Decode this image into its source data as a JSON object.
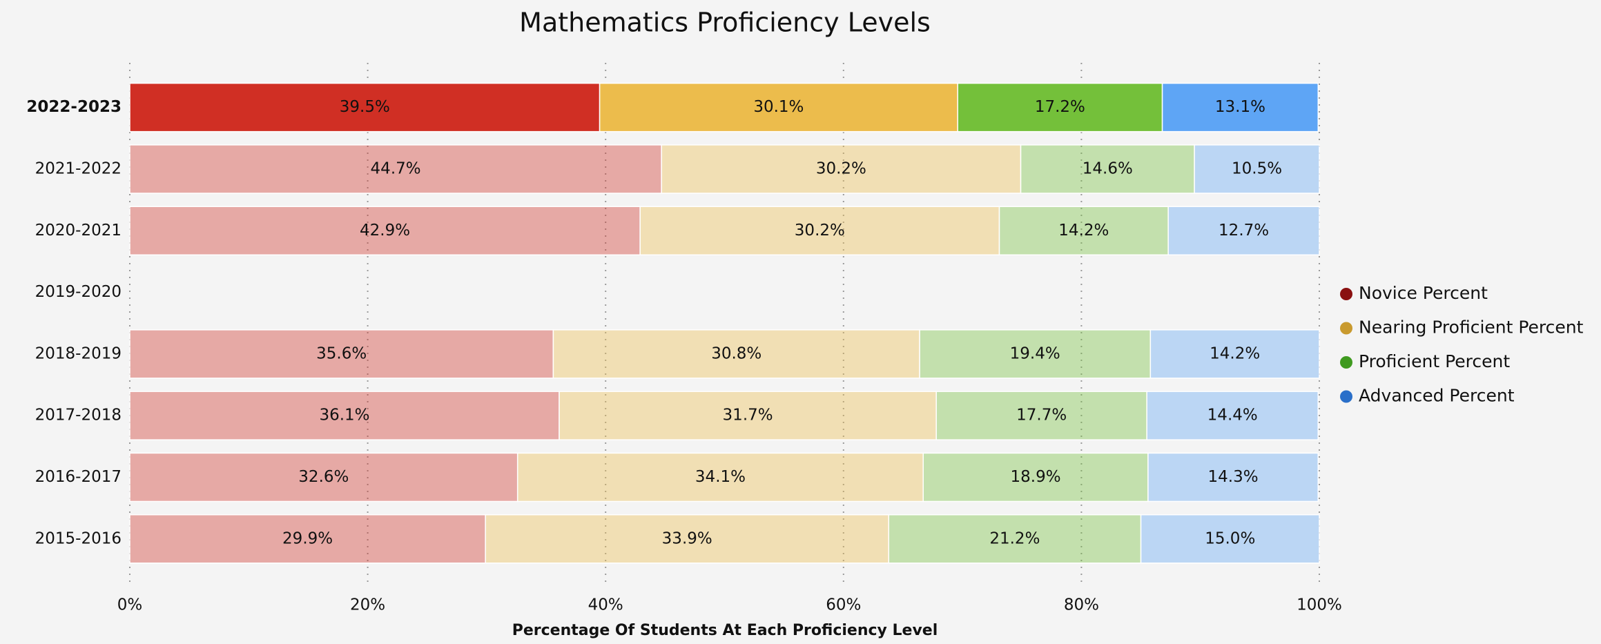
{
  "chart_data": {
    "type": "stacked_barh",
    "title": "Mathematics Proficiency Levels",
    "xlabel": "Percentage Of Students At Each Proficiency Level",
    "categories": [
      "2022-2023",
      "2021-2022",
      "2020-2021",
      "2019-2020",
      "2018-2019",
      "2017-2018",
      "2016-2017",
      "2015-2016"
    ],
    "highlight": "2022-2023",
    "series": [
      {
        "name": "Novice Percent",
        "color": "#d02f24",
        "legend_color": "#8a1010",
        "values": [
          39.5,
          44.7,
          42.9,
          null,
          35.6,
          36.1,
          32.6,
          29.9
        ],
        "value_labels": [
          "39.5%",
          "44.7%",
          "42.9%",
          null,
          "35.6%",
          "36.1%",
          "32.6%",
          "29.9%"
        ]
      },
      {
        "name": "Nearing Proficient Percent",
        "color": "#ecbc4c",
        "legend_color": "#c99a2e",
        "values": [
          30.1,
          30.2,
          30.2,
          null,
          30.8,
          31.7,
          34.1,
          33.9
        ],
        "value_labels": [
          "30.1%",
          "30.2%",
          "30.2%",
          null,
          "30.8%",
          "31.7%",
          "34.1%",
          "33.9%"
        ]
      },
      {
        "name": "Proficient Percent",
        "color": "#74c03a",
        "legend_color": "#3f9a1f",
        "values": [
          17.2,
          14.6,
          14.2,
          null,
          19.4,
          17.7,
          18.9,
          21.2
        ],
        "value_labels": [
          "17.2%",
          "14.6%",
          "14.2%",
          null,
          "19.4%",
          "17.7%",
          "18.9%",
          "21.2%"
        ]
      },
      {
        "name": "Advanced Percent",
        "color": "#5ea5f5",
        "legend_color": "#2a6fc9",
        "values": [
          13.1,
          10.5,
          12.7,
          null,
          14.2,
          14.4,
          14.3,
          15.0
        ],
        "value_labels": [
          "13.1%",
          "10.5%",
          "12.7%",
          null,
          "14.2%",
          "14.4%",
          "14.3%",
          "15.0%"
        ]
      }
    ],
    "xlim": [
      0,
      100
    ],
    "xticks": [
      {
        "value": 0,
        "label": "0%"
      },
      {
        "value": 20,
        "label": "20%"
      },
      {
        "value": 40,
        "label": "40%"
      },
      {
        "value": 60,
        "label": "60%"
      },
      {
        "value": 80,
        "label": "80%"
      },
      {
        "value": 100,
        "label": "100%"
      }
    ],
    "grid": true,
    "legend": "right"
  }
}
